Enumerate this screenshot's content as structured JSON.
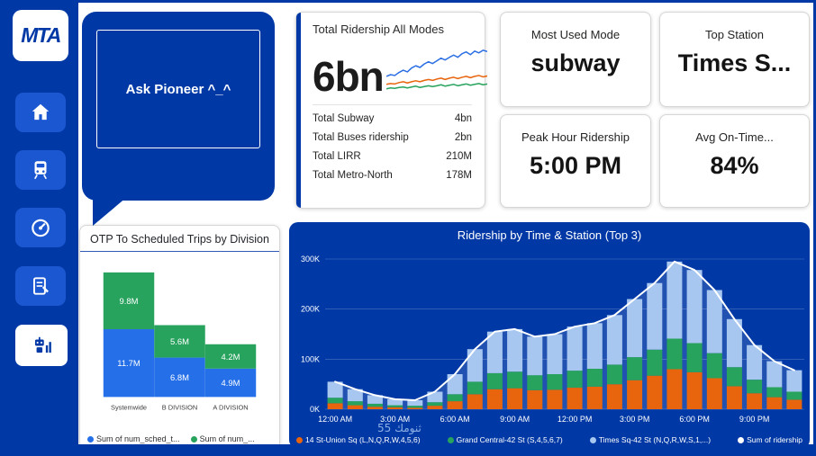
{
  "brand": {
    "logo_text": "MTA"
  },
  "sidebar": {
    "items": [
      {
        "name": "home"
      },
      {
        "name": "trains"
      },
      {
        "name": "performance"
      },
      {
        "name": "planner"
      },
      {
        "name": "pioneer-bot",
        "selected": true
      }
    ]
  },
  "speech_bubble": {
    "text": "Ask Pioneer ^_^"
  },
  "ridership_card": {
    "title": "Total Ridership All Modes",
    "big_value": "6bn",
    "rows": [
      {
        "label": "Total Subway",
        "value": "4bn"
      },
      {
        "label": "Total Buses ridership",
        "value": "2bn"
      },
      {
        "label": "Total LIRR",
        "value": "210M"
      },
      {
        "label": "Total Metro-North",
        "value": "178M"
      }
    ]
  },
  "kpi_cards": [
    {
      "title": "Most Used Mode",
      "value": "subway"
    },
    {
      "title": "Top Station",
      "value": "Times S..."
    },
    {
      "title": "Peak Hour Ridership",
      "value": "5:00 PM"
    },
    {
      "title": "Avg On-Time...",
      "value": "84%"
    }
  ],
  "watermark": {
    "text": "ثنومك 55"
  },
  "colors": {
    "brand_blue": "#0039A6",
    "button_blue": "#1B57D0",
    "bar_blue": "#2570E8",
    "bar_green": "#27A35D",
    "bar_orange": "#E8650D",
    "bar_light_blue": "#A8C7F0",
    "white": "#FFFFFF"
  },
  "chart_data": [
    {
      "type": "line",
      "name": "total-ridership-sparkline",
      "series": [
        {
          "name": "subway-trend",
          "color": "#2B6FE3",
          "values": [
            38,
            42,
            40,
            47,
            52,
            48,
            57,
            62,
            58,
            66,
            71,
            67,
            73,
            79,
            75,
            81,
            86,
            81,
            89,
            93,
            87,
            95,
            91,
            97,
            94
          ]
        },
        {
          "name": "bus-trend",
          "color": "#E8650D",
          "values": [
            20,
            22,
            21,
            24,
            26,
            23,
            26,
            28,
            26,
            29,
            31,
            29,
            32,
            34,
            31,
            34,
            36,
            33,
            36,
            38,
            35,
            38,
            40,
            37,
            39
          ]
        },
        {
          "name": "rail-trend",
          "color": "#27A35D",
          "values": [
            10,
            12,
            11,
            13,
            14,
            12,
            14,
            16,
            13,
            15,
            17,
            15,
            17,
            19,
            16,
            18,
            20,
            17,
            19,
            21,
            18,
            20,
            22,
            19,
            21
          ]
        }
      ]
    },
    {
      "type": "bar",
      "title": "OTP To Scheduled Trips by Division",
      "categories": [
        "Systemwide",
        "B DIVISION",
        "A DIVISION"
      ],
      "unit": "M",
      "legend_position": "bottom",
      "series": [
        {
          "name": "Sum of num_sched_t...",
          "color": "#2570E8",
          "values": [
            11.7,
            6.8,
            4.9
          ]
        },
        {
          "name": "Sum of num_...",
          "color": "#27A35D",
          "values": [
            9.8,
            5.6,
            4.2
          ]
        }
      ]
    },
    {
      "type": "stacked-bar-line",
      "title": "Ridership by Time & Station (Top 3)",
      "unit": "K",
      "hours": 24,
      "ylim": [
        0,
        300
      ],
      "grid": true,
      "legend_position": "bottom",
      "y_ticks": [
        {
          "v": 0,
          "label": "0K"
        },
        {
          "v": 100,
          "label": "100K"
        },
        {
          "v": 200,
          "label": "200K"
        },
        {
          "v": 300,
          "label": "300K"
        }
      ],
      "x_ticks": [
        {
          "i": 0,
          "label": "12:00 AM"
        },
        {
          "i": 3,
          "label": "3:00 AM"
        },
        {
          "i": 6,
          "label": "6:00 AM"
        },
        {
          "i": 9,
          "label": "9:00 AM"
        },
        {
          "i": 12,
          "label": "12:00 PM"
        },
        {
          "i": 15,
          "label": "3:00 PM"
        },
        {
          "i": 18,
          "label": "6:00 PM"
        },
        {
          "i": 21,
          "label": "9:00 PM"
        }
      ],
      "series": [
        {
          "name": "14 St-Union Sq (L,N,Q,R,W,4,5,6)",
          "color": "#E8650D",
          "values": [
            12,
            8,
            5,
            4,
            3,
            7,
            16,
            30,
            40,
            42,
            38,
            39,
            43,
            45,
            50,
            58,
            67,
            80,
            74,
            62,
            46,
            32,
            24,
            19
          ]
        },
        {
          "name": "Grand Central-42 St (S,4,5,6,7)",
          "color": "#27A35D",
          "values": [
            11,
            8,
            6,
            4,
            4,
            7,
            14,
            25,
            32,
            33,
            30,
            31,
            34,
            36,
            39,
            46,
            52,
            61,
            58,
            50,
            38,
            27,
            20,
            16
          ]
        },
        {
          "name": "Times Sq-42 St (N,Q,R,W,S,1,...)",
          "color": "#A8C7F0",
          "values": [
            32,
            24,
            17,
            12,
            11,
            21,
            40,
            65,
            83,
            85,
            77,
            80,
            88,
            91,
            99,
            116,
            133,
            154,
            146,
            126,
            96,
            69,
            52,
            43
          ]
        },
        {
          "name": "Sum of ridership",
          "color": "#FFFFFF",
          "role": "line",
          "derived": "sum_of_stacked_series"
        }
      ]
    }
  ]
}
